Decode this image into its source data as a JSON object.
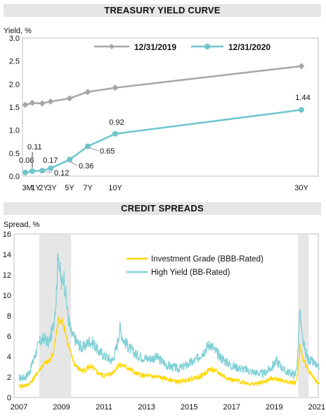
{
  "chart_data": [
    {
      "type": "line",
      "title": "TREASURY YIELD CURVE",
      "ylabel": "Yield, %",
      "ylim": [
        0,
        3.0
      ],
      "yticks": [
        "0.0",
        "0.5",
        "1.0",
        "1.5",
        "2.0",
        "2.5",
        "3.0"
      ],
      "x_tick_labels": [
        "3M",
        "1Y",
        "2Y",
        "3Y",
        "5Y",
        "7Y",
        "10Y",
        "30Y"
      ],
      "x": [
        0.25,
        1,
        2,
        3,
        5,
        7,
        10,
        30
      ],
      "legend_position": "top",
      "series": [
        {
          "name": "12/31/2019",
          "color": "#a6a6a6",
          "values": [
            1.55,
            1.59,
            1.58,
            1.62,
            1.69,
            1.83,
            1.92,
            2.39
          ]
        },
        {
          "name": "12/31/2020",
          "color": "#6ec6cc",
          "values": [
            0.08,
            0.11,
            0.12,
            0.17,
            0.36,
            0.65,
            0.92,
            1.44
          ],
          "data_labels": [
            "0.08",
            "0.11",
            "0.12",
            "0.17",
            "0.36",
            "0.65",
            "0.92",
            "1.44"
          ]
        }
      ]
    },
    {
      "type": "line",
      "title": "CREDIT SPREADS",
      "ylabel": "Spread, %",
      "ylim": [
        0,
        16
      ],
      "yticks": [
        "0",
        "2",
        "4",
        "6",
        "8",
        "10",
        "12",
        "14",
        "16"
      ],
      "xlim": [
        2007,
        2021.3
      ],
      "x_tick_labels": [
        "2007",
        "2009",
        "2011",
        "2013",
        "2015",
        "2017",
        "2019",
        "2021"
      ],
      "legend_position": "top-center",
      "shaded_periods": [
        [
          2007.95,
          2009.45
        ],
        [
          2020.12,
          2020.62
        ]
      ],
      "series": [
        {
          "name": "Investment Grade (BBB-Rated)",
          "color": "#ffd700",
          "x": [
            2007.0,
            2007.4,
            2007.6,
            2007.8,
            2008.0,
            2008.2,
            2008.4,
            2008.6,
            2008.75,
            2008.85,
            2008.95,
            2009.05,
            2009.15,
            2009.3,
            2009.45,
            2009.6,
            2009.8,
            2010.0,
            2010.3,
            2010.5,
            2010.7,
            2011.0,
            2011.4,
            2011.7,
            2011.9,
            2012.2,
            2012.5,
            2013.0,
            2013.5,
            2014.0,
            2014.5,
            2015.0,
            2015.5,
            2016.0,
            2016.3,
            2016.7,
            2017.0,
            2017.5,
            2018.0,
            2018.5,
            2018.9,
            2019.2,
            2019.6,
            2020.0,
            2020.1,
            2020.2,
            2020.3,
            2020.45,
            2020.6,
            2020.9,
            2021.1
          ],
          "values": [
            1.1,
            1.2,
            1.6,
            2.2,
            2.8,
            3.3,
            3.5,
            4.3,
            6.0,
            7.7,
            7.3,
            7.5,
            6.8,
            5.2,
            4.2,
            3.3,
            2.8,
            2.6,
            3.0,
            2.8,
            2.4,
            2.1,
            2.4,
            3.2,
            3.1,
            2.8,
            2.3,
            2.1,
            2.0,
            1.8,
            1.5,
            1.8,
            2.0,
            2.8,
            2.5,
            2.0,
            1.7,
            1.5,
            1.3,
            1.5,
            1.9,
            1.8,
            1.5,
            1.4,
            2.3,
            4.9,
            4.2,
            3.3,
            2.6,
            1.8,
            1.3
          ]
        },
        {
          "name": "High Yield (BB-Rated)",
          "color": "#7fd0d6",
          "x": [
            2007.0,
            2007.3,
            2007.5,
            2007.7,
            2007.9,
            2008.0,
            2008.2,
            2008.4,
            2008.6,
            2008.75,
            2008.85,
            2008.92,
            2009.0,
            2009.1,
            2009.2,
            2009.3,
            2009.45,
            2009.6,
            2009.8,
            2010.0,
            2010.3,
            2010.5,
            2010.7,
            2011.0,
            2011.4,
            2011.6,
            2011.75,
            2011.9,
            2012.2,
            2012.5,
            2013.0,
            2013.5,
            2014.0,
            2014.5,
            2014.9,
            2015.3,
            2015.7,
            2016.0,
            2016.2,
            2016.5,
            2017.0,
            2017.5,
            2018.0,
            2018.5,
            2018.9,
            2019.1,
            2019.5,
            2020.0,
            2020.1,
            2020.2,
            2020.3,
            2020.45,
            2020.6,
            2020.9,
            2021.1
          ],
          "values": [
            1.9,
            2.0,
            2.5,
            3.8,
            5.0,
            5.5,
            5.8,
            5.3,
            6.8,
            9.8,
            14.6,
            12.5,
            11.0,
            12.0,
            10.0,
            8.0,
            6.3,
            5.8,
            5.2,
            4.8,
            5.5,
            5.3,
            4.6,
            4.1,
            3.6,
            5.0,
            6.8,
            5.7,
            4.8,
            4.2,
            3.8,
            3.9,
            3.1,
            2.8,
            3.2,
            3.6,
            4.6,
            5.3,
            4.6,
            3.9,
            3.1,
            2.8,
            2.5,
            2.3,
            3.0,
            3.6,
            2.6,
            2.2,
            3.9,
            8.5,
            6.0,
            4.5,
            3.7,
            3.3,
            2.7
          ]
        }
      ]
    }
  ]
}
